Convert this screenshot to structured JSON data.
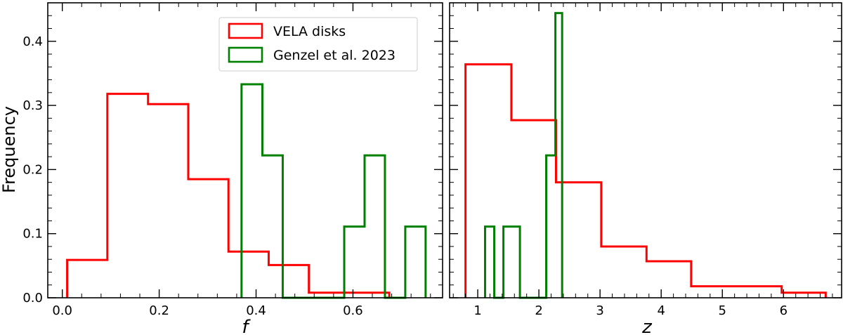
{
  "chart_data": [
    {
      "type": "histogram",
      "panel": "left",
      "xlabel": "f",
      "ylabel": "Frequency",
      "xlim": [
        -0.03,
        0.785
      ],
      "ylim": [
        0,
        0.46
      ],
      "xticks": [
        0.0,
        0.2,
        0.4,
        0.6
      ],
      "xtick_labels": [
        "0.0",
        "0.2",
        "0.4",
        "0.6"
      ],
      "yticks": [
        0.0,
        0.1,
        0.2,
        0.3,
        0.4
      ],
      "ytick_labels": [
        "0.0",
        "0.1",
        "0.2",
        "0.3",
        "0.4"
      ],
      "legend": {
        "placement": "upper center",
        "entries": [
          {
            "label": "VELA disks",
            "color": "#ff0000"
          },
          {
            "label": "Genzel et al. 2023",
            "color": "#008000"
          }
        ]
      },
      "series": [
        {
          "name": "VELA disks",
          "color": "#ff0000",
          "edges": [
            0.01,
            0.093,
            0.177,
            0.26,
            0.343,
            0.426,
            0.509,
            0.592,
            0.675
          ],
          "values": [
            0.059,
            0.318,
            0.302,
            0.185,
            0.072,
            0.051,
            0.008,
            0.008
          ]
        },
        {
          "name": "Genzel et al. 2023",
          "color": "#008000",
          "edges": [
            0.37,
            0.413,
            0.455,
            0.497,
            0.539,
            0.582,
            0.624,
            0.666,
            0.708,
            0.75
          ],
          "values": [
            0.333,
            0.222,
            0,
            0,
            0,
            0.111,
            0.222,
            0,
            0.111
          ]
        }
      ]
    },
    {
      "type": "histogram",
      "panel": "right",
      "xlabel": "z",
      "ylabel": "",
      "xlim": [
        0.54,
        6.95
      ],
      "ylim": [
        0,
        0.46
      ],
      "xticks": [
        1,
        2,
        3,
        4,
        5,
        6
      ],
      "xtick_labels": [
        "1",
        "2",
        "3",
        "4",
        "5",
        "6"
      ],
      "yticks": [
        0.0,
        0.1,
        0.2,
        0.3,
        0.4
      ],
      "series": [
        {
          "name": "VELA disks",
          "color": "#ff0000",
          "edges": [
            0.8,
            1.55,
            2.28,
            3.02,
            3.76,
            4.49,
            5.97,
            6.69
          ],
          "values": [
            0.364,
            0.277,
            0.18,
            0.08,
            0.057,
            0.018,
            0.008
          ]
        },
        {
          "name": "Genzel et al. 2023",
          "color": "#008000",
          "edges": [
            1.12,
            1.27,
            1.42,
            1.69,
            2.12,
            2.27,
            2.38
          ],
          "values": [
            0.111,
            0,
            0.111,
            0,
            0.222,
            0.444
          ]
        }
      ]
    }
  ]
}
